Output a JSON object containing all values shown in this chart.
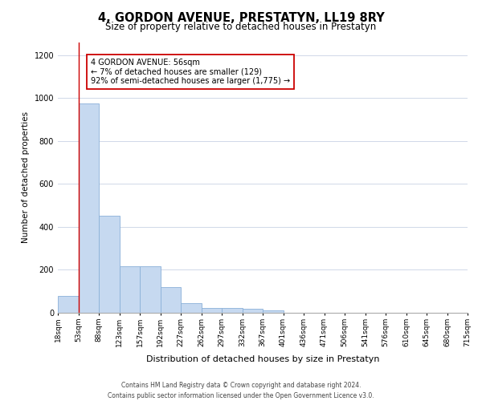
{
  "title": "4, GORDON AVENUE, PRESTATYN, LL19 8RY",
  "subtitle": "Size of property relative to detached houses in Prestatyn",
  "xlabel": "Distribution of detached houses by size in Prestatyn",
  "ylabel": "Number of detached properties",
  "bar_color": "#c6d9f0",
  "bar_edge_color": "#8ab0d8",
  "grid_color": "#d0d8e8",
  "background_color": "#ffffff",
  "bin_labels": [
    "18sqm",
    "53sqm",
    "88sqm",
    "123sqm",
    "157sqm",
    "192sqm",
    "227sqm",
    "262sqm",
    "297sqm",
    "332sqm",
    "367sqm",
    "401sqm",
    "436sqm",
    "471sqm",
    "506sqm",
    "541sqm",
    "576sqm",
    "610sqm",
    "645sqm",
    "680sqm",
    "715sqm"
  ],
  "bar_heights": [
    80,
    975,
    450,
    215,
    215,
    120,
    45,
    22,
    22,
    20,
    10,
    0,
    0,
    0,
    0,
    0,
    0,
    0,
    0,
    0
  ],
  "ylim": [
    0,
    1260
  ],
  "yticks": [
    0,
    200,
    400,
    600,
    800,
    1000,
    1200
  ],
  "red_line_bin": 1,
  "annotation_text": "4 GORDON AVENUE: 56sqm\n← 7% of detached houses are smaller (129)\n92% of semi-detached houses are larger (1,775) →",
  "red_line_color": "#cc0000",
  "annotation_box_color": "#ffffff",
  "annotation_box_edge": "#cc0000",
  "footer_text": "Contains HM Land Registry data © Crown copyright and database right 2024.\nContains public sector information licensed under the Open Government Licence v3.0.",
  "n_bins": 20,
  "title_fontsize": 10.5,
  "subtitle_fontsize": 8.5,
  "xlabel_fontsize": 8,
  "ylabel_fontsize": 7.5,
  "tick_fontsize": 6.5,
  "annotation_fontsize": 7,
  "footer_fontsize": 5.5
}
